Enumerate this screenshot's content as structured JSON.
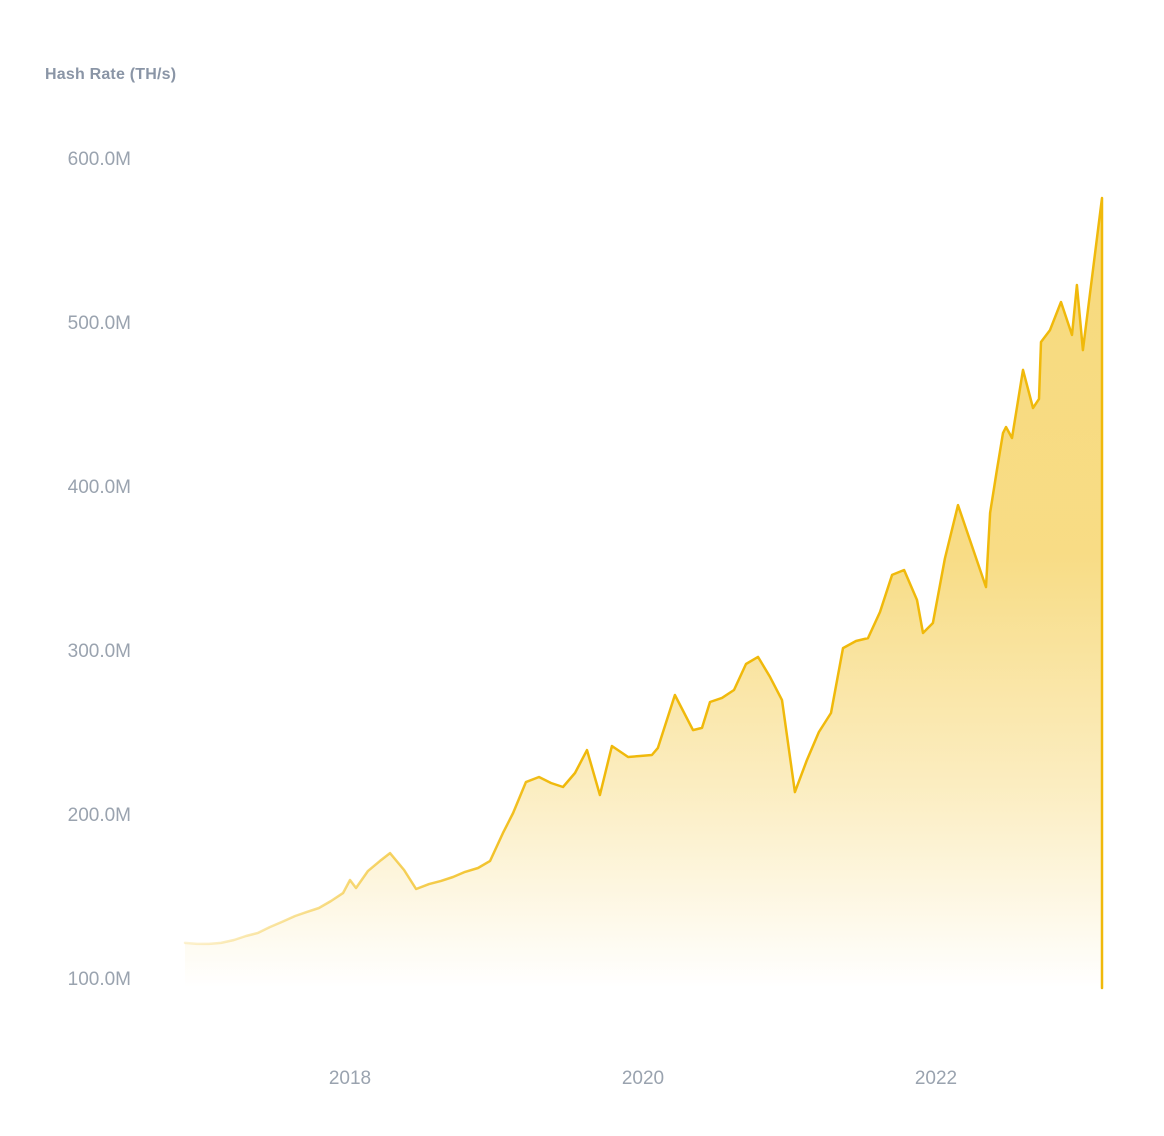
{
  "chart_data": {
    "type": "area",
    "title": "Hash Rate (TH/s)",
    "xlabel": "",
    "ylabel": "Hash Rate (TH/s)",
    "y_unit": "TH/s, shown in millions (M)",
    "x_unit": "year (decimal)",
    "x_ticks": [
      "2018",
      "2020",
      "2022"
    ],
    "x_tick_values": [
      2018,
      2020,
      2022
    ],
    "y_ticks": [
      "100.0M",
      "200.0M",
      "300.0M",
      "400.0M",
      "500.0M",
      "600.0M"
    ],
    "y_tick_values": [
      100,
      200,
      300,
      400,
      500,
      600
    ],
    "xlim": [
      2016.87,
      2023.14
    ],
    "ylim": [
      95,
      620
    ],
    "grid": false,
    "legend": false,
    "series": [
      {
        "name": "Hash Rate",
        "color": "#F0B90B",
        "points": [
          [
            2016.874,
            122.6
          ],
          [
            2016.956,
            122.0
          ],
          [
            2017.038,
            122.0
          ],
          [
            2017.12,
            122.6
          ],
          [
            2017.208,
            124.4
          ],
          [
            2017.29,
            126.8
          ],
          [
            2017.372,
            128.7
          ],
          [
            2017.454,
            132.3
          ],
          [
            2017.536,
            135.4
          ],
          [
            2017.625,
            139.0
          ],
          [
            2017.706,
            141.5
          ],
          [
            2017.788,
            143.9
          ],
          [
            2017.87,
            148.2
          ],
          [
            2017.952,
            153.0
          ],
          [
            2018.0,
            161.0
          ],
          [
            2018.041,
            156.1
          ],
          [
            2018.123,
            166.5
          ],
          [
            2018.205,
            172.6
          ],
          [
            2018.273,
            177.4
          ],
          [
            2018.369,
            167.1
          ],
          [
            2018.451,
            155.5
          ],
          [
            2018.539,
            158.5
          ],
          [
            2018.621,
            160.4
          ],
          [
            2018.703,
            162.8
          ],
          [
            2018.785,
            165.9
          ],
          [
            2018.874,
            168.3
          ],
          [
            2018.956,
            172.6
          ],
          [
            2019.044,
            189.6
          ],
          [
            2019.113,
            201.8
          ],
          [
            2019.201,
            220.7
          ],
          [
            2019.29,
            223.8
          ],
          [
            2019.372,
            220.1
          ],
          [
            2019.454,
            217.7
          ],
          [
            2019.536,
            226.2
          ],
          [
            2019.618,
            240.2
          ],
          [
            2019.706,
            212.8
          ],
          [
            2019.788,
            242.7
          ],
          [
            2019.898,
            236.0
          ],
          [
            2019.98,
            236.6
          ],
          [
            2020.061,
            237.2
          ],
          [
            2020.102,
            241.5
          ],
          [
            2020.218,
            273.8
          ],
          [
            2020.341,
            252.4
          ],
          [
            2020.403,
            253.7
          ],
          [
            2020.457,
            269.5
          ],
          [
            2020.539,
            272.0
          ],
          [
            2020.621,
            276.8
          ],
          [
            2020.703,
            292.7
          ],
          [
            2020.785,
            297.0
          ],
          [
            2020.867,
            284.8
          ],
          [
            2020.949,
            270.7
          ],
          [
            2021.037,
            214.6
          ],
          [
            2021.119,
            234.1
          ],
          [
            2021.201,
            251.2
          ],
          [
            2021.283,
            262.8
          ],
          [
            2021.365,
            302.4
          ],
          [
            2021.454,
            306.7
          ],
          [
            2021.536,
            308.5
          ],
          [
            2021.618,
            324.4
          ],
          [
            2021.7,
            347.0
          ],
          [
            2021.782,
            350.0
          ],
          [
            2021.87,
            331.7
          ],
          [
            2021.911,
            311.6
          ],
          [
            2021.979,
            317.7
          ],
          [
            2022.061,
            357.0
          ],
          [
            2022.15,
            389.6
          ],
          [
            2022.246,
            364.6
          ],
          [
            2022.341,
            339.6
          ],
          [
            2022.369,
            384.8
          ],
          [
            2022.416,
            411.0
          ],
          [
            2022.457,
            433.5
          ],
          [
            2022.478,
            437.2
          ],
          [
            2022.519,
            430.5
          ],
          [
            2022.594,
            472.0
          ],
          [
            2022.662,
            448.8
          ],
          [
            2022.703,
            454.3
          ],
          [
            2022.717,
            489.0
          ],
          [
            2022.778,
            496.3
          ],
          [
            2022.853,
            513.4
          ],
          [
            2022.901,
            500.6
          ],
          [
            2022.928,
            493.3
          ],
          [
            2022.962,
            523.8
          ],
          [
            2023.003,
            484.1
          ],
          [
            2023.133,
            576.8
          ]
        ]
      }
    ]
  },
  "colors": {
    "line": "#F0B90B",
    "fill_base": "#F0B90B",
    "title_text": "#8A95A6",
    "tick_text": "#9AA3AF",
    "background": "#FFFFFF"
  }
}
